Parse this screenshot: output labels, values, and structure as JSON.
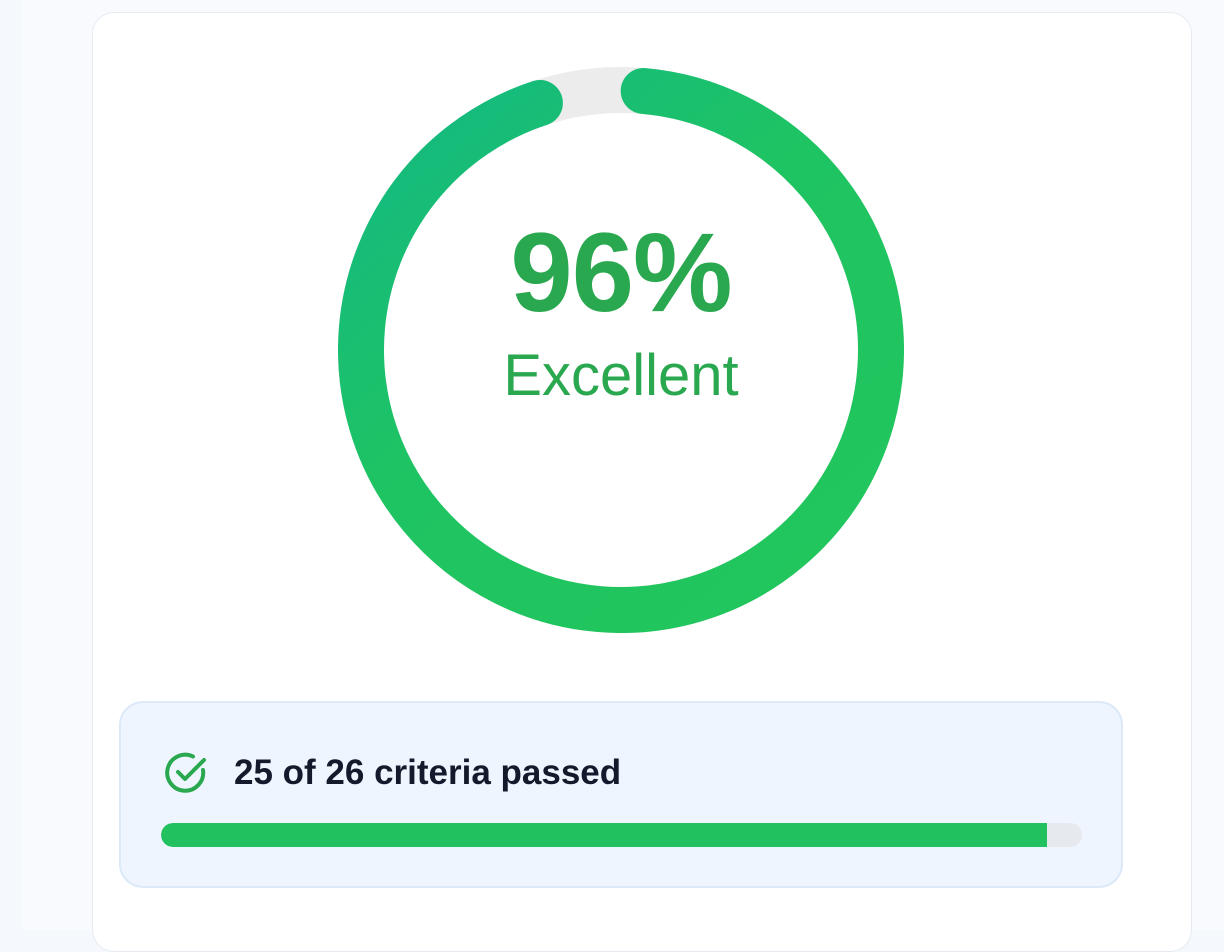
{
  "score": {
    "percent": 96,
    "label": "96%",
    "grade": "Excellent"
  },
  "criteria": {
    "summary": "25 of 26 criteria passed",
    "passed": 25,
    "total": 26
  },
  "colors": {
    "accent": "#22c15f",
    "accent_dark": "#2aa84f",
    "track": "#ececec"
  },
  "icons": {
    "status": "check-circle-icon"
  }
}
